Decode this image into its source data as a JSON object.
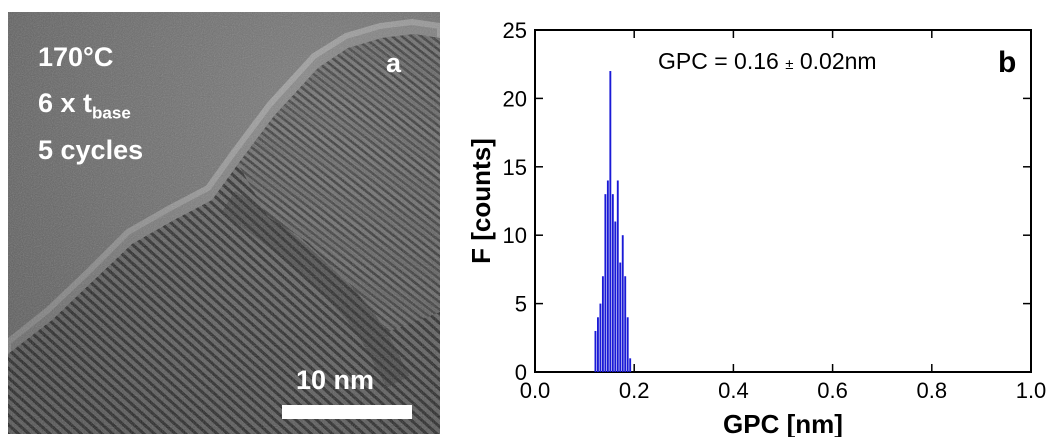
{
  "panel_a": {
    "temperature": "170°C",
    "base_time_prefix": "6 x t",
    "base_time_subscript": "base",
    "cycles": "5 cycles",
    "panel_letter": "a",
    "scale_bar_label": "10 nm",
    "colors": {
      "background": "#7d7d7d",
      "text": "#ffffff",
      "scale_bar": "#ffffff"
    }
  },
  "chart_data": {
    "type": "bar",
    "panel_letter": "b",
    "annotation_prefix": "GPC = 0.16 ",
    "annotation_pm": "±",
    "annotation_suffix": " 0.02nm",
    "xlabel": "GPC [nm]",
    "ylabel": "F [counts]",
    "xlim": [
      0.0,
      1.0
    ],
    "ylim": [
      0,
      25
    ],
    "xticks": [
      "0.0",
      "0.2",
      "0.4",
      "0.6",
      "0.8",
      "1.0"
    ],
    "xtick_values": [
      0.0,
      0.2,
      0.4,
      0.6,
      0.8,
      1.0
    ],
    "yticks": [
      "0",
      "5",
      "10",
      "15",
      "20",
      "25"
    ],
    "ytick_values": [
      0,
      5,
      10,
      15,
      20,
      25
    ],
    "bin_width": 0.005,
    "x": [
      0.12,
      0.125,
      0.13,
      0.135,
      0.14,
      0.145,
      0.15,
      0.155,
      0.16,
      0.165,
      0.17,
      0.175,
      0.18,
      0.185,
      0.19
    ],
    "values": [
      3,
      4,
      5,
      7,
      13,
      14,
      22,
      13,
      11,
      14,
      8,
      10,
      7,
      4,
      1
    ],
    "grid": false,
    "legend": "none",
    "bar_color": "#1a1ad6"
  }
}
